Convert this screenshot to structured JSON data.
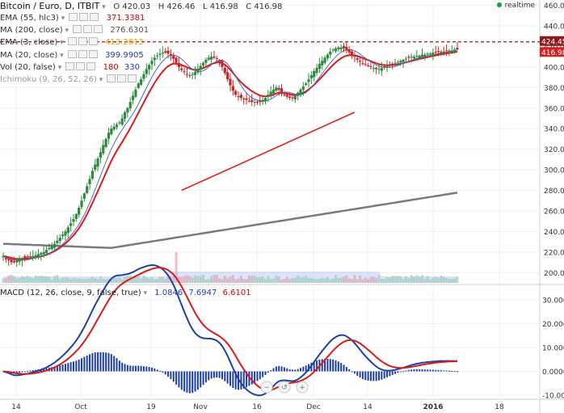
{
  "header": {
    "title": "Bitcoin / Euro, D, ITBIT",
    "ohlc": {
      "o": "O 420.03",
      "h": "H 426.46",
      "l": "L 416.98",
      "c": "C 416.98"
    },
    "realtime_label": "realtime",
    "realtime_color": "#1a9e3a"
  },
  "indicators": [
    {
      "id": "ema55",
      "label": "EMA (55, hlc3)",
      "value": "371.3381",
      "color": "#cc0000"
    },
    {
      "id": "ma200",
      "label": "MA (200, close)",
      "value": "276.6301",
      "color": "#555555"
    },
    {
      "id": "ema3",
      "label": "EMA (3, close)",
      "value": "413.2613",
      "color": "#ff9900"
    },
    {
      "id": "ma20",
      "label": "MA (20, close)",
      "value": "399.9905",
      "color": "#1f3fa8"
    },
    {
      "id": "vol",
      "label": "Vol (20, false)",
      "value": "180",
      "value2": "330",
      "color": "#cc0000",
      "color2": "#1f3fa8"
    },
    {
      "id": "ichimoku",
      "label": "Ichimoku (9, 26, 52, 26)",
      "value": "",
      "color": "#999999"
    }
  ],
  "macd_legend": {
    "label": "MACD (12, 26, close, 9, false, true)",
    "values": [
      "1.0846",
      "7.6947",
      "6.6101"
    ],
    "colors": [
      "#1f3fa8",
      "#1f3fa8",
      "#cc0000"
    ]
  },
  "price_badges": [
    {
      "value": "424.45",
      "color": "#8b1a1a"
    },
    {
      "value": "416.98",
      "color": "#cc2222"
    }
  ],
  "chart_data": [
    {
      "type": "candlestick",
      "title": "Bitcoin / Euro, D, ITBIT",
      "ylim": [
        190,
        462
      ],
      "y_ticks": [
        200,
        220,
        240,
        260,
        280,
        300,
        320,
        340,
        360,
        380,
        400,
        420,
        440,
        460
      ],
      "x_ticks": [
        "14",
        "Oct",
        "19",
        "Nov",
        "16",
        "Dec",
        "14",
        "2016",
        "18"
      ],
      "close_series": [
        216,
        213,
        212,
        210,
        210,
        212,
        213,
        214,
        214,
        215,
        216,
        216,
        217,
        218,
        219,
        220,
        222,
        224,
        226,
        228,
        231,
        234,
        237,
        240,
        244,
        248,
        252,
        257,
        263,
        270,
        277,
        284,
        291,
        299,
        305,
        311,
        317,
        324,
        330,
        336,
        340,
        342,
        344,
        346,
        350,
        356,
        360,
        366,
        372,
        378,
        384,
        388,
        393,
        398,
        402,
        406,
        409,
        411,
        413,
        414,
        414,
        413,
        411,
        408,
        404,
        400,
        397,
        395,
        393,
        392,
        393,
        395,
        398,
        401,
        404,
        407,
        409,
        410,
        409,
        408,
        405,
        400,
        394,
        388,
        382,
        377,
        373,
        371,
        370,
        369,
        368,
        367,
        366,
        366,
        366,
        366,
        368,
        370,
        373,
        376,
        378,
        380,
        378,
        375,
        373,
        371,
        370,
        370,
        372,
        375,
        378,
        381,
        384,
        388,
        392,
        396,
        399,
        403,
        406,
        409,
        412,
        415,
        417,
        418,
        419,
        419,
        418,
        416,
        414,
        412,
        410,
        407,
        405,
        403,
        402,
        401,
        400,
        399,
        398,
        398,
        399,
        400,
        401,
        402,
        403,
        404,
        405,
        406,
        407,
        408,
        409,
        410,
        410,
        411,
        411,
        412,
        412,
        413,
        413,
        414,
        414,
        415,
        415,
        415,
        416,
        416,
        416,
        417,
        417
      ],
      "moving_averages": [
        {
          "name": "EMA (55, hlc3)",
          "last": 371.3381
        },
        {
          "name": "MA (200, close)",
          "last": 276.6301
        },
        {
          "name": "MA (20, close)",
          "last": 399.9905
        }
      ],
      "trendlines": 2,
      "last_price": 416.98,
      "prev_high_line": 424.45
    },
    {
      "type": "macd",
      "title": "MACD (12, 26, close, 9, false, true)",
      "ylim": [
        -11000,
        35000
      ],
      "y_ticks": [
        -10000,
        0,
        10000,
        20000,
        30000
      ],
      "y_tick_labels": [
        "-10.0000",
        "0.0000",
        "10.0000",
        "20.0000",
        "30.0000"
      ],
      "macd_line_last": 7.6947,
      "signal_line_last": 6.6101,
      "histogram_last": 1.0846
    }
  ],
  "bottom_axis_icons": [
    "zoom-out-icon",
    "reset-zoom-icon",
    "zoom-in-icon"
  ]
}
